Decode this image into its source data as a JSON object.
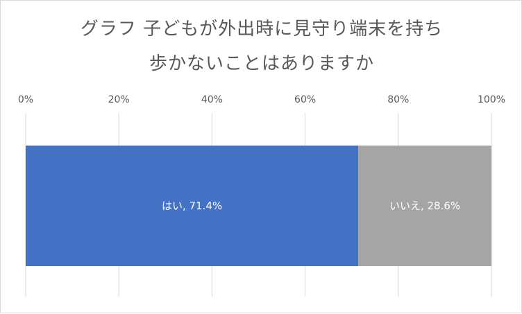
{
  "chart_data": {
    "type": "bar",
    "orientation": "horizontal-stacked-100",
    "title_lines": [
      "グラフ 子どもが外出時に見守り端末を持ち",
      "歩かないことはありますか"
    ],
    "series": [
      {
        "name": "はい",
        "value": 71.4,
        "color": "#4472c4",
        "label": "はい, 71.4%"
      },
      {
        "name": "いいえ",
        "value": 28.6,
        "color": "#a5a5a5",
        "label": "いいえ, 28.6%"
      }
    ],
    "xlim": [
      0,
      100
    ],
    "xticks": [
      0,
      20,
      40,
      60,
      80,
      100
    ],
    "tick_labels": [
      "0%",
      "20%",
      "40%",
      "60%",
      "80%",
      "100%"
    ],
    "grid": true,
    "gridline_color": "#d9d9d9"
  }
}
